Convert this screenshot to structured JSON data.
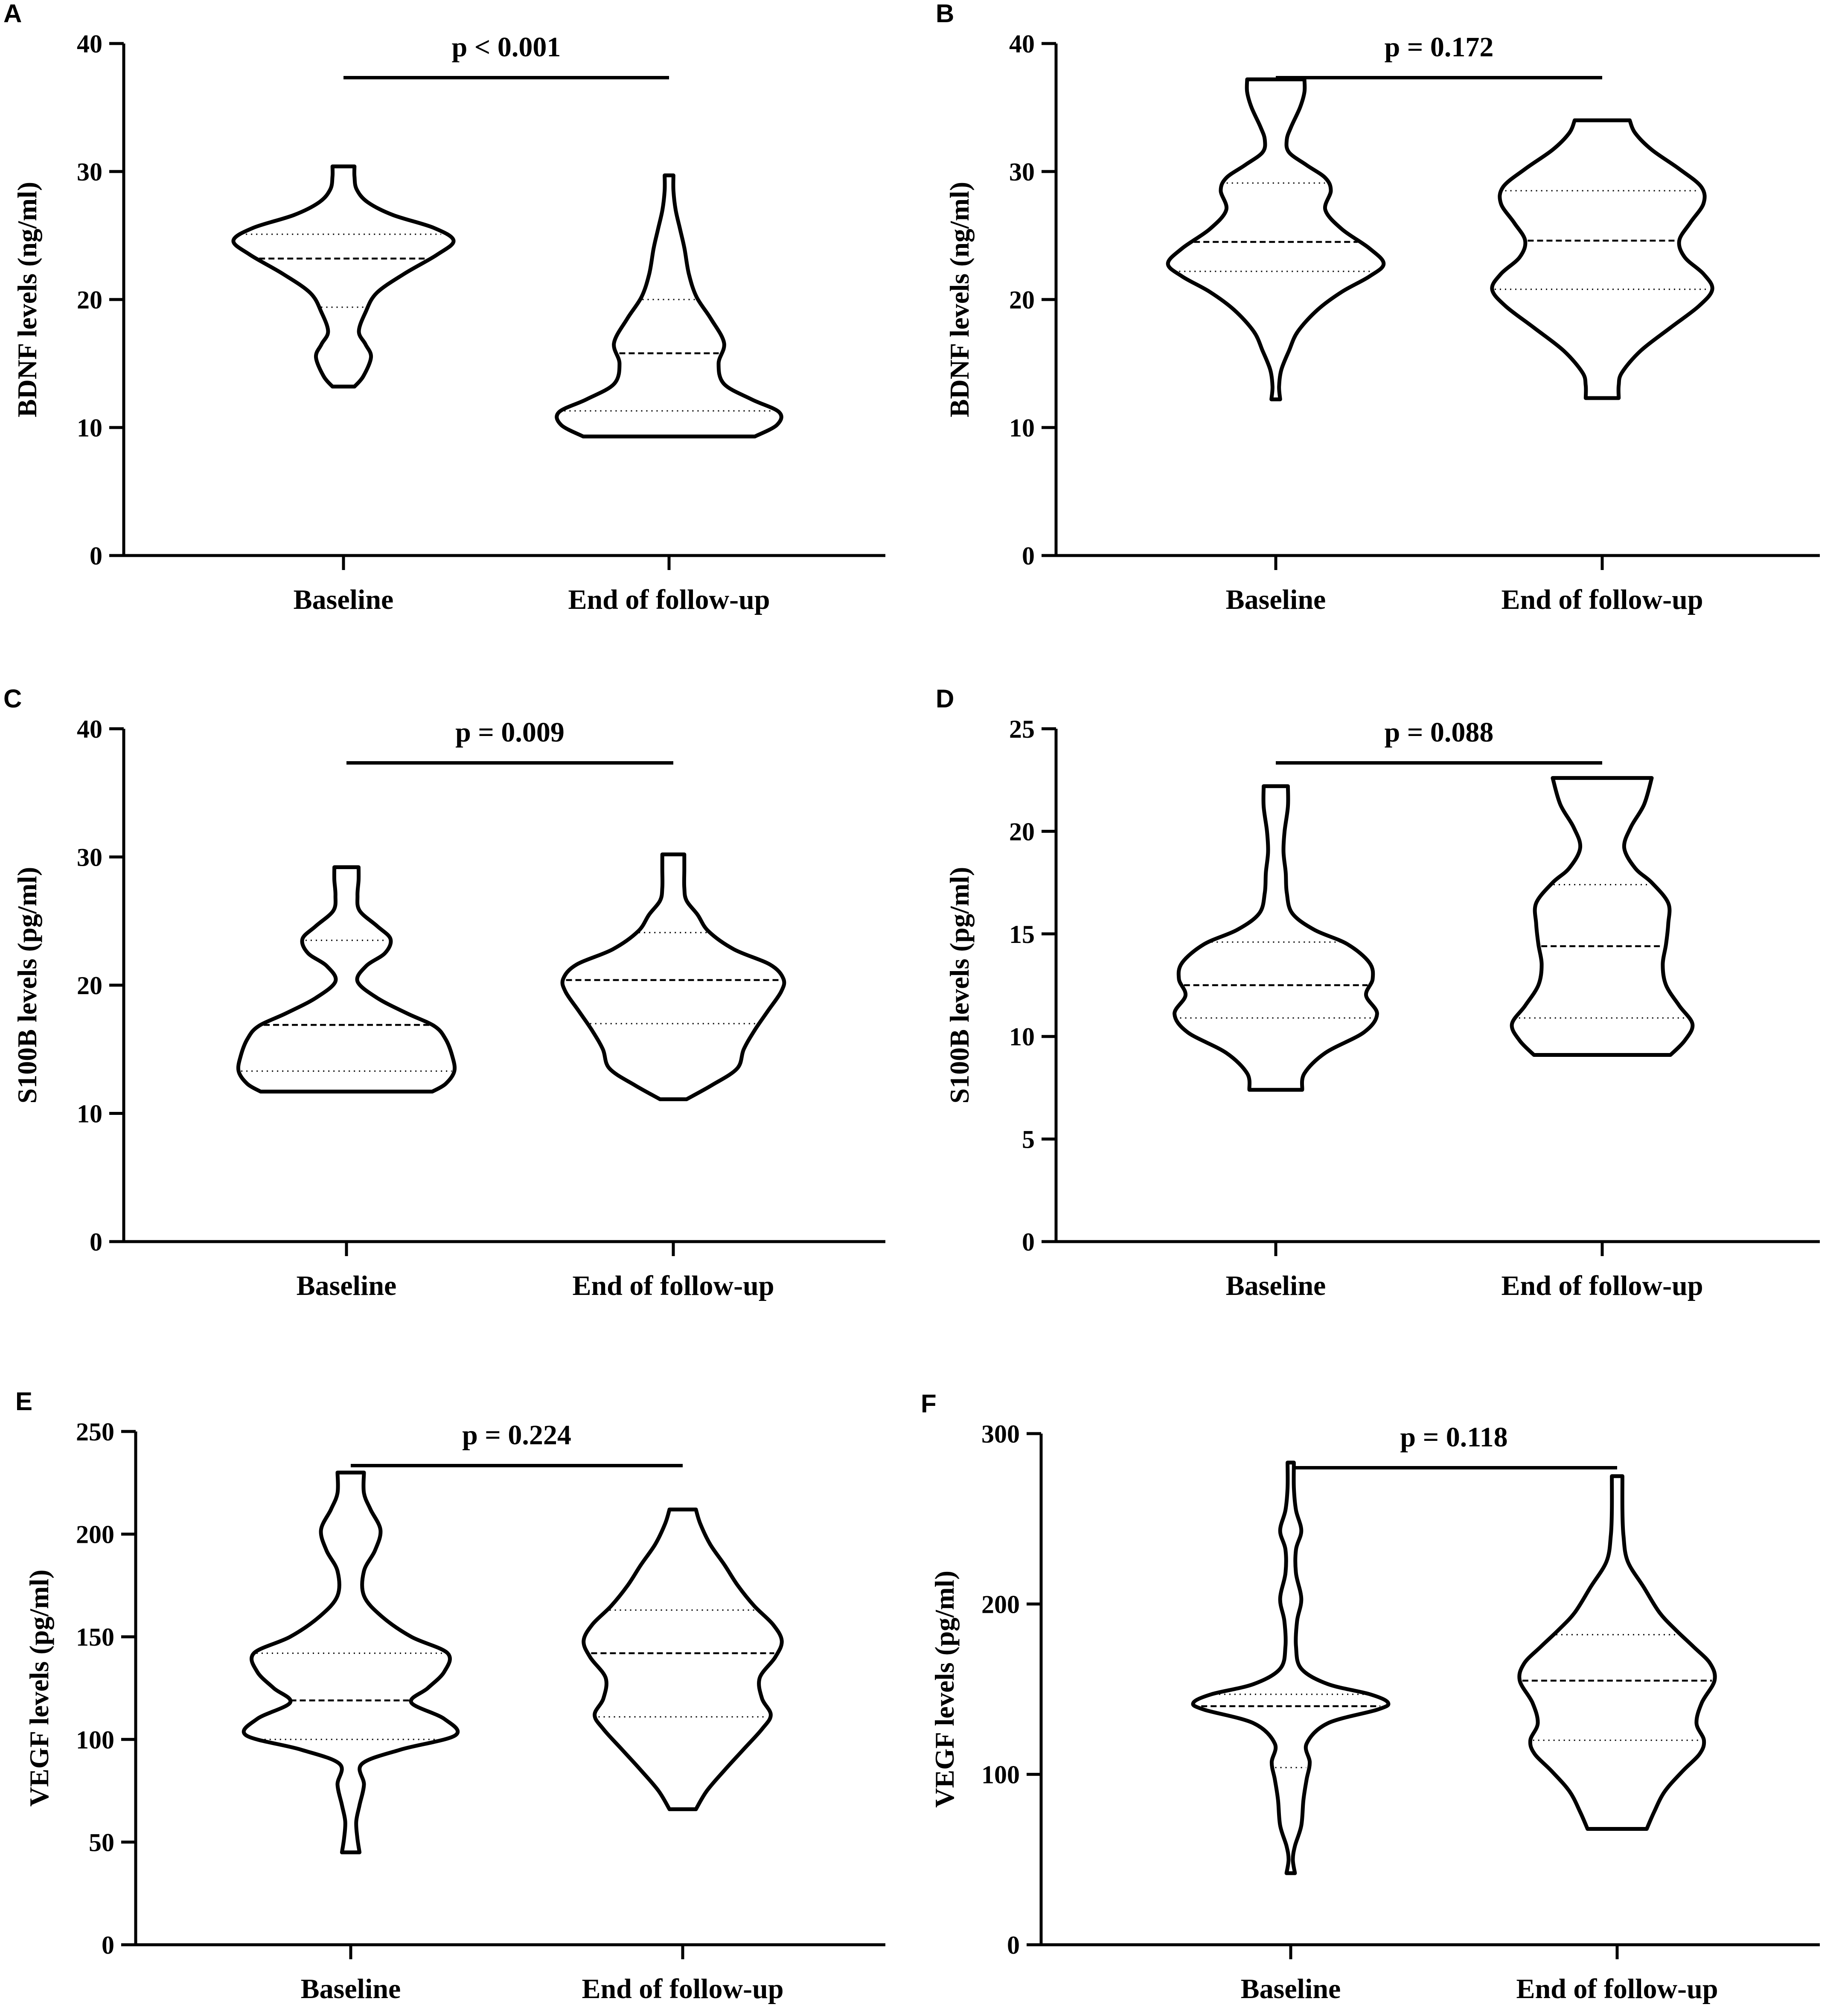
{
  "chart_data": [
    {
      "type": "violin",
      "panel": "A",
      "ylabel": "BDNF levels (ng/ml)",
      "ylim": [
        0,
        40
      ],
      "yticks": [
        0,
        10,
        20,
        30,
        40
      ],
      "categories": [
        "Baseline",
        "End of follow-up"
      ],
      "annotation": "p < 0.001",
      "violins": [
        {
          "category": "Baseline",
          "min": 13.2,
          "max": 30.4,
          "q1": 19.4,
          "median": 23.2,
          "q3": 25.1,
          "density": [
            [
              13.2,
              0.1
            ],
            [
              14,
              0.18
            ],
            [
              15.5,
              0.25
            ],
            [
              16.5,
              0.2
            ],
            [
              17.5,
              0.14
            ],
            [
              19,
              0.2
            ],
            [
              20.5,
              0.3
            ],
            [
              22,
              0.55
            ],
            [
              23.5,
              0.85
            ],
            [
              24.6,
              1.0
            ],
            [
              25.6,
              0.82
            ],
            [
              26.6,
              0.45
            ],
            [
              27.6,
              0.22
            ],
            [
              28.6,
              0.12
            ],
            [
              29.6,
              0.1
            ],
            [
              30.4,
              0.1
            ]
          ]
        },
        {
          "category": "End of follow-up",
          "min": 9.3,
          "max": 29.7,
          "q1": 11.3,
          "median": 15.8,
          "q3": 20.0,
          "density": [
            [
              9.3,
              0.78
            ],
            [
              10.2,
              0.98
            ],
            [
              11.2,
              1.0
            ],
            [
              12.2,
              0.75
            ],
            [
              13.4,
              0.5
            ],
            [
              15,
              0.45
            ],
            [
              16.6,
              0.5
            ],
            [
              18.5,
              0.38
            ],
            [
              20.2,
              0.25
            ],
            [
              22,
              0.18
            ],
            [
              24,
              0.14
            ],
            [
              25.5,
              0.1
            ],
            [
              27,
              0.06
            ],
            [
              28.5,
              0.04
            ],
            [
              29.7,
              0.04
            ]
          ]
        }
      ]
    },
    {
      "type": "violin",
      "panel": "B",
      "ylabel": "BDNF levels (ng/ml)",
      "ylim": [
        0,
        40
      ],
      "yticks": [
        0,
        10,
        20,
        30,
        40
      ],
      "categories": [
        "Baseline",
        "End of follow-up"
      ],
      "annotation": "p = 0.172",
      "violins": [
        {
          "category": "Baseline",
          "min": 12.2,
          "max": 37.2,
          "q1": 22.2,
          "median": 24.5,
          "q3": 29.1,
          "density": [
            [
              12.2,
              0.04
            ],
            [
              13.2,
              0.03
            ],
            [
              14.5,
              0.05
            ],
            [
              16,
              0.12
            ],
            [
              17.5,
              0.2
            ],
            [
              19.2,
              0.38
            ],
            [
              20.6,
              0.6
            ],
            [
              21.8,
              0.85
            ],
            [
              22.8,
              0.98
            ],
            [
              24,
              0.85
            ],
            [
              25.5,
              0.6
            ],
            [
              27,
              0.45
            ],
            [
              28.5,
              0.5
            ],
            [
              29.5,
              0.45
            ],
            [
              30.5,
              0.28
            ],
            [
              31.5,
              0.12
            ],
            [
              32.5,
              0.1
            ],
            [
              33.5,
              0.14
            ],
            [
              35,
              0.22
            ],
            [
              36.2,
              0.26
            ],
            [
              37.2,
              0.26
            ]
          ]
        },
        {
          "category": "End of follow-up",
          "min": 12.3,
          "max": 34.0,
          "q1": 20.8,
          "median": 24.6,
          "q3": 28.5,
          "density": [
            [
              12.3,
              0.15
            ],
            [
              13.3,
              0.15
            ],
            [
              14.3,
              0.18
            ],
            [
              16,
              0.35
            ],
            [
              17.8,
              0.62
            ],
            [
              19.5,
              0.88
            ],
            [
              20.8,
              1.0
            ],
            [
              22,
              0.92
            ],
            [
              23.3,
              0.75
            ],
            [
              24.6,
              0.7
            ],
            [
              26,
              0.8
            ],
            [
              27.5,
              0.92
            ],
            [
              28.8,
              0.9
            ],
            [
              30.2,
              0.7
            ],
            [
              31.7,
              0.45
            ],
            [
              33,
              0.3
            ],
            [
              34,
              0.25
            ]
          ]
        }
      ]
    },
    {
      "type": "violin",
      "panel": "C",
      "ylabel": "S100B levels (pg/ml)",
      "ylim": [
        0,
        40
      ],
      "yticks": [
        0,
        10,
        20,
        30,
        40
      ],
      "categories": [
        "Baseline",
        "End of follow-up"
      ],
      "annotation": "p = 0.009",
      "violins": [
        {
          "category": "Baseline",
          "min": 11.7,
          "max": 29.2,
          "q1": 13.3,
          "median": 16.9,
          "q3": 23.5,
          "density": [
            [
              11.7,
              0.78
            ],
            [
              12.3,
              0.9
            ],
            [
              13.3,
              0.98
            ],
            [
              14.5,
              0.96
            ],
            [
              15.8,
              0.9
            ],
            [
              16.8,
              0.8
            ],
            [
              17.8,
              0.55
            ],
            [
              19,
              0.28
            ],
            [
              20.3,
              0.1
            ],
            [
              21.5,
              0.18
            ],
            [
              22.5,
              0.35
            ],
            [
              23.6,
              0.4
            ],
            [
              24.6,
              0.28
            ],
            [
              25.8,
              0.12
            ],
            [
              27,
              0.1
            ],
            [
              28.2,
              0.11
            ],
            [
              29.2,
              0.11
            ]
          ]
        },
        {
          "category": "End of follow-up",
          "min": 11.1,
          "max": 30.2,
          "q1": 17.0,
          "median": 20.4,
          "q3": 24.1,
          "density": [
            [
              11.1,
              0.12
            ],
            [
              12.2,
              0.35
            ],
            [
              13.5,
              0.58
            ],
            [
              15,
              0.64
            ],
            [
              16.5,
              0.74
            ],
            [
              18,
              0.86
            ],
            [
              19.5,
              0.98
            ],
            [
              20.5,
              1.0
            ],
            [
              21.6,
              0.88
            ],
            [
              22.8,
              0.55
            ],
            [
              24.2,
              0.32
            ],
            [
              25.5,
              0.22
            ],
            [
              26.6,
              0.12
            ],
            [
              27.6,
              0.1
            ],
            [
              29,
              0.1
            ],
            [
              30.2,
              0.1
            ]
          ]
        }
      ]
    },
    {
      "type": "violin",
      "panel": "D",
      "ylabel": "S100B levels (pg/ml)",
      "ylim": [
        0,
        25
      ],
      "yticks": [
        0,
        5,
        10,
        15,
        20,
        25
      ],
      "categories": [
        "Baseline",
        "End of follow-up"
      ],
      "annotation": "p = 0.088",
      "violins": [
        {
          "category": "Baseline",
          "min": 7.4,
          "max": 22.2,
          "q1": 10.9,
          "median": 12.5,
          "q3": 14.6,
          "density": [
            [
              7.4,
              0.24
            ],
            [
              8.2,
              0.26
            ],
            [
              9.2,
              0.45
            ],
            [
              10.2,
              0.8
            ],
            [
              11.1,
              0.92
            ],
            [
              12,
              0.82
            ],
            [
              12.8,
              0.88
            ],
            [
              13.6,
              0.85
            ],
            [
              14.5,
              0.65
            ],
            [
              15.2,
              0.35
            ],
            [
              16,
              0.15
            ],
            [
              17,
              0.1
            ],
            [
              18,
              0.09
            ],
            [
              19,
              0.07
            ],
            [
              20,
              0.08
            ],
            [
              21.2,
              0.11
            ],
            [
              22.2,
              0.11
            ]
          ]
        },
        {
          "category": "End of follow-up",
          "min": 9.1,
          "max": 22.6,
          "q1": 10.9,
          "median": 14.4,
          "q3": 17.4,
          "density": [
            [
              9.1,
              0.62
            ],
            [
              9.8,
              0.75
            ],
            [
              10.6,
              0.82
            ],
            [
              11.5,
              0.7
            ],
            [
              12.5,
              0.58
            ],
            [
              13.5,
              0.55
            ],
            [
              14.5,
              0.58
            ],
            [
              15.5,
              0.6
            ],
            [
              16.5,
              0.6
            ],
            [
              17.5,
              0.45
            ],
            [
              18.2,
              0.3
            ],
            [
              19.2,
              0.2
            ],
            [
              20.2,
              0.26
            ],
            [
              21.3,
              0.38
            ],
            [
              22.6,
              0.45
            ]
          ]
        }
      ]
    },
    {
      "type": "violin",
      "panel": "E",
      "ylabel": "VEGF levels (pg/ml)",
      "ylim": [
        0,
        250
      ],
      "yticks": [
        0,
        50,
        100,
        150,
        200,
        250
      ],
      "categories": [
        "Baseline",
        "End of follow-up"
      ],
      "annotation": "p = 0.224",
      "violins": [
        {
          "category": "Baseline",
          "min": 45,
          "max": 230,
          "q1": 100,
          "median": 119,
          "q3": 142,
          "density": [
            [
              45,
              0.08
            ],
            [
              52,
              0.06
            ],
            [
              60,
              0.05
            ],
            [
              68,
              0.08
            ],
            [
              78,
              0.12
            ],
            [
              88,
              0.1
            ],
            [
              95,
              0.45
            ],
            [
              102,
              0.95
            ],
            [
              110,
              0.85
            ],
            [
              118,
              0.55
            ],
            [
              125,
              0.7
            ],
            [
              133,
              0.85
            ],
            [
              142,
              0.88
            ],
            [
              150,
              0.55
            ],
            [
              160,
              0.28
            ],
            [
              170,
              0.12
            ],
            [
              182,
              0.12
            ],
            [
              192,
              0.22
            ],
            [
              202,
              0.27
            ],
            [
              212,
              0.18
            ],
            [
              220,
              0.12
            ],
            [
              230,
              0.12
            ]
          ]
        },
        {
          "category": "End of follow-up",
          "min": 66,
          "max": 212,
          "q1": 111,
          "median": 142,
          "q3": 163,
          "density": [
            [
              66,
              0.12
            ],
            [
              75,
              0.22
            ],
            [
              85,
              0.38
            ],
            [
              95,
              0.55
            ],
            [
              105,
              0.72
            ],
            [
              112,
              0.8
            ],
            [
              120,
              0.72
            ],
            [
              130,
              0.7
            ],
            [
              140,
              0.84
            ],
            [
              148,
              0.9
            ],
            [
              156,
              0.82
            ],
            [
              165,
              0.65
            ],
            [
              175,
              0.5
            ],
            [
              185,
              0.38
            ],
            [
              195,
              0.25
            ],
            [
              205,
              0.16
            ],
            [
              212,
              0.12
            ]
          ]
        }
      ]
    },
    {
      "type": "violin",
      "panel": "F",
      "ylabel": "VEGF levels (pg/ml)",
      "ylim": [
        0,
        300
      ],
      "yticks": [
        0,
        100,
        200,
        300
      ],
      "categories": [
        "Baseline",
        "End of follow-up"
      ],
      "annotation": "p = 0.118",
      "violins": [
        {
          "category": "Baseline",
          "min": 42,
          "max": 283,
          "q1": 104,
          "median": 140,
          "q3": 147,
          "density": [
            [
              42,
              0.04
            ],
            [
              50,
              0.02
            ],
            [
              58,
              0.04
            ],
            [
              70,
              0.1
            ],
            [
              85,
              0.12
            ],
            [
              97,
              0.15
            ],
            [
              107,
              0.18
            ],
            [
              118,
              0.15
            ],
            [
              130,
              0.35
            ],
            [
              138,
              0.82
            ],
            [
              142,
              0.92
            ],
            [
              147,
              0.75
            ],
            [
              153,
              0.35
            ],
            [
              162,
              0.1
            ],
            [
              175,
              0.05
            ],
            [
              190,
              0.06
            ],
            [
              203,
              0.1
            ],
            [
              218,
              0.05
            ],
            [
              232,
              0.05
            ],
            [
              243,
              0.1
            ],
            [
              255,
              0.05
            ],
            [
              268,
              0.03
            ],
            [
              283,
              0.03
            ]
          ]
        },
        {
          "category": "End of follow-up",
          "min": 68,
          "max": 275,
          "q1": 120,
          "median": 155,
          "q3": 182,
          "density": [
            [
              68,
              0.28
            ],
            [
              78,
              0.35
            ],
            [
              90,
              0.45
            ],
            [
              102,
              0.62
            ],
            [
              112,
              0.78
            ],
            [
              120,
              0.82
            ],
            [
              130,
              0.75
            ],
            [
              142,
              0.8
            ],
            [
              155,
              0.92
            ],
            [
              165,
              0.88
            ],
            [
              175,
              0.72
            ],
            [
              185,
              0.55
            ],
            [
              195,
              0.4
            ],
            [
              210,
              0.25
            ],
            [
              225,
              0.1
            ],
            [
              240,
              0.06
            ],
            [
              255,
              0.05
            ],
            [
              275,
              0.05
            ]
          ]
        }
      ]
    }
  ]
}
